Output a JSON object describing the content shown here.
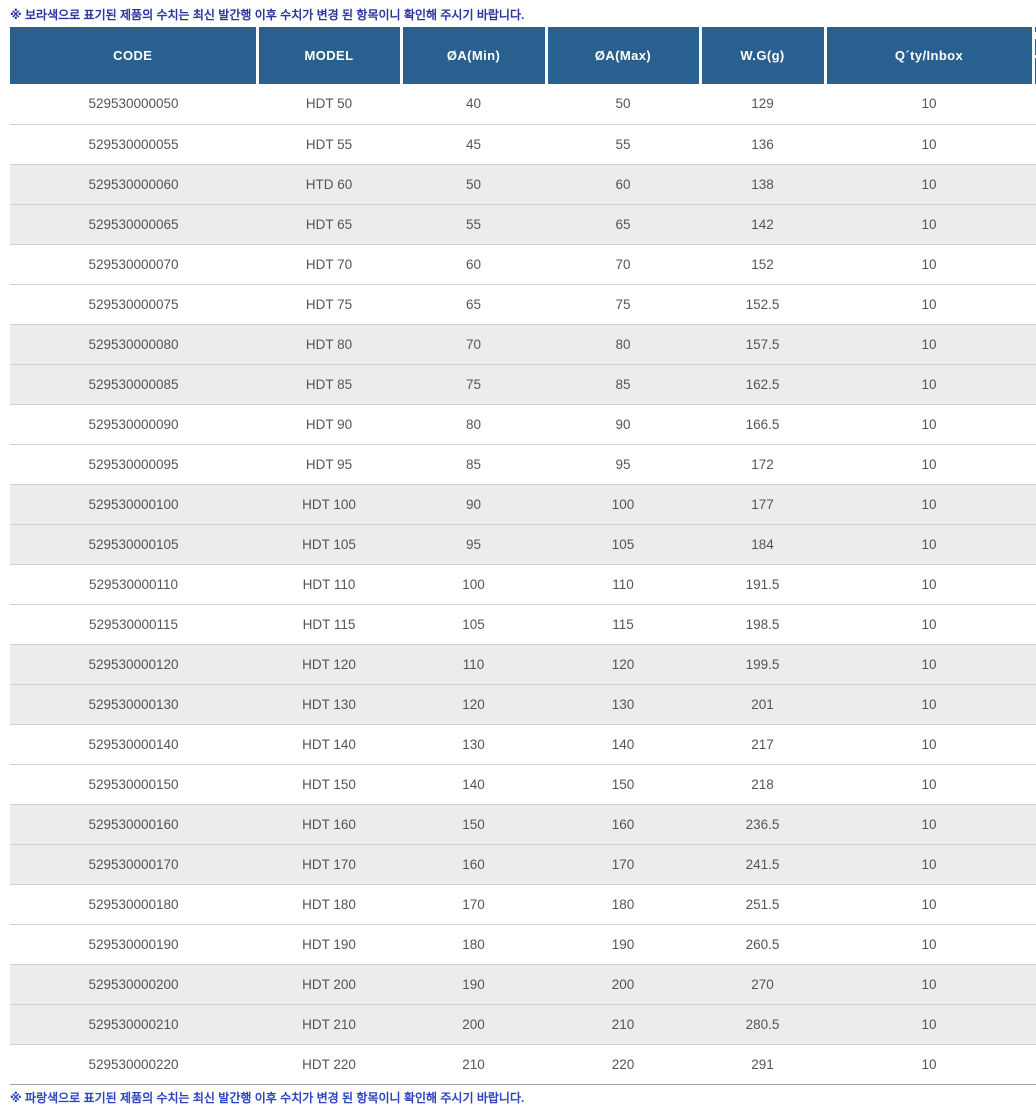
{
  "notice_top": "※ 보라색으로 표기된 제품의 수치는 최신 발간행 이후 수치가 변경 된 항목이니 확인해 주시기 바랍니다.",
  "notice_bottom": "※ 파랑색으로 표기된 제품의 수치는 최신 발간행 이후 수치가 변경 된 항목이니 확인해 주시기 바랍니다.",
  "table": {
    "headers": [
      "CODE",
      "MODEL",
      "ØA(Min)",
      "ØA(Max)",
      "W.G(g)",
      "Q´ty/Inbox"
    ],
    "rows": [
      [
        "529530000050",
        "HDT 50",
        "40",
        "50",
        "129",
        "10"
      ],
      [
        "529530000055",
        "HDT 55",
        "45",
        "55",
        "136",
        "10"
      ],
      [
        "529530000060",
        "HTD 60",
        "50",
        "60",
        "138",
        "10"
      ],
      [
        "529530000065",
        "HDT 65",
        "55",
        "65",
        "142",
        "10"
      ],
      [
        "529530000070",
        "HDT 70",
        "60",
        "70",
        "152",
        "10"
      ],
      [
        "529530000075",
        "HDT 75",
        "65",
        "75",
        "152.5",
        "10"
      ],
      [
        "529530000080",
        "HDT 80",
        "70",
        "80",
        "157.5",
        "10"
      ],
      [
        "529530000085",
        "HDT 85",
        "75",
        "85",
        "162.5",
        "10"
      ],
      [
        "529530000090",
        "HDT 90",
        "80",
        "90",
        "166.5",
        "10"
      ],
      [
        "529530000095",
        "HDT 95",
        "85",
        "95",
        "172",
        "10"
      ],
      [
        "529530000100",
        "HDT 100",
        "90",
        "100",
        "177",
        "10"
      ],
      [
        "529530000105",
        "HDT 105",
        "95",
        "105",
        "184",
        "10"
      ],
      [
        "529530000110",
        "HDT 110",
        "100",
        "110",
        "191.5",
        "10"
      ],
      [
        "529530000115",
        "HDT 115",
        "105",
        "115",
        "198.5",
        "10"
      ],
      [
        "529530000120",
        "HDT 120",
        "110",
        "120",
        "199.5",
        "10"
      ],
      [
        "529530000130",
        "HDT 130",
        "120",
        "130",
        "201",
        "10"
      ],
      [
        "529530000140",
        "HDT 140",
        "130",
        "140",
        "217",
        "10"
      ],
      [
        "529530000150",
        "HDT 150",
        "140",
        "150",
        "218",
        "10"
      ],
      [
        "529530000160",
        "HDT 160",
        "150",
        "160",
        "236.5",
        "10"
      ],
      [
        "529530000170",
        "HDT 170",
        "160",
        "170",
        "241.5",
        "10"
      ],
      [
        "529530000180",
        "HDT 180",
        "170",
        "180",
        "251.5",
        "10"
      ],
      [
        "529530000190",
        "HDT 190",
        "180",
        "190",
        "260.5",
        "10"
      ],
      [
        "529530000200",
        "HDT 200",
        "190",
        "200",
        "270",
        "10"
      ],
      [
        "529530000210",
        "HDT 210",
        "200",
        "210",
        "280.5",
        "10"
      ],
      [
        "529530000220",
        "HDT 220",
        "210",
        "220",
        "291",
        "10"
      ]
    ]
  },
  "colors": {
    "header_bg": "#28618f",
    "header_text": "#ffffff",
    "row_alt_bg": "#ececec",
    "row_border": "#cfcfcf",
    "table_bottom_border": "#9e9e9e",
    "cell_text": "#555555",
    "notice_top_color": "#2a35a0",
    "notice_bottom_color": "#2c44c0"
  }
}
